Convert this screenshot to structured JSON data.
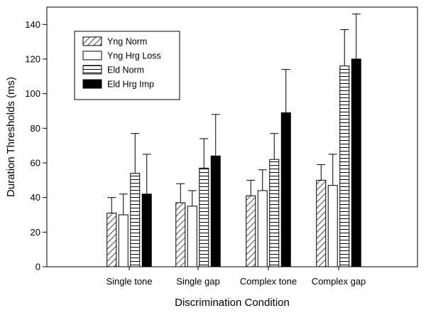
{
  "chart_data": {
    "type": "bar",
    "title": "",
    "xlabel": "Discrimination Condition",
    "ylabel": "Duration Thresholds (ms)",
    "ylim": [
      0,
      150
    ],
    "yticks": [
      0,
      20,
      40,
      60,
      80,
      100,
      120,
      140
    ],
    "categories": [
      "Single tone",
      "Single gap",
      "Complex tone",
      "Complex gap"
    ],
    "error_bars": "upper",
    "legend_position": "top-left",
    "grid": false,
    "series": [
      {
        "name": "Yng Norm",
        "pattern": "diagonal-hatch",
        "values": [
          31,
          37,
          41,
          50
        ],
        "errors": [
          9,
          11,
          9,
          9
        ]
      },
      {
        "name": "Yng Hrg Loss",
        "pattern": "white",
        "values": [
          30,
          35,
          44,
          47
        ],
        "errors": [
          12,
          9,
          12,
          18
        ]
      },
      {
        "name": "Eld Norm",
        "pattern": "horizontal-hatch",
        "values": [
          54,
          57,
          62,
          116
        ],
        "errors": [
          23,
          17,
          15,
          21
        ]
      },
      {
        "name": "Eld Hrg Imp",
        "pattern": "black",
        "values": [
          42,
          64,
          89,
          120
        ],
        "errors": [
          23,
          24,
          25,
          26
        ]
      }
    ]
  }
}
